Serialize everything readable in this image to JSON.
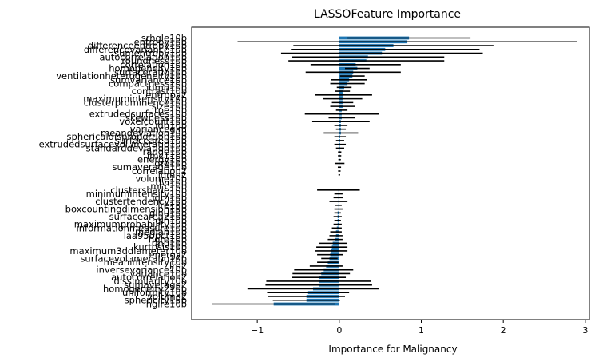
{
  "chart_data": {
    "type": "bar",
    "orientation": "horizontal",
    "title": "LASSOFeature Importance",
    "xlabel": "Importance for Malignancy",
    "ylabel": "",
    "xlim": [
      -1.8,
      3.05
    ],
    "xticks": [
      -1,
      0,
      1,
      2,
      3
    ],
    "xtick_labels": [
      "−1",
      "0",
      "1",
      "2",
      "3"
    ],
    "grid": false,
    "legend": "none",
    "bar_color": "#1f77b4",
    "error_color": "#000000",
    "features": [
      {
        "name": "srhgle10b",
        "value": 0.85,
        "err": 0.75
      },
      {
        "name": "entropy10b",
        "value": 0.83,
        "err": 2.07
      },
      {
        "name": "differenceentropy10b",
        "value": 0.66,
        "err": 1.22
      },
      {
        "name": "differencevariance10b",
        "value": 0.56,
        "err": 1.15
      },
      {
        "name": "sumentropy10b",
        "value": 0.52,
        "err": 1.23
      },
      {
        "name": "autocorrelation10b",
        "value": 0.35,
        "err": 0.93
      },
      {
        "name": "roundness10b",
        "value": 0.33,
        "err": 0.95
      },
      {
        "name": "correlation10b",
        "value": 0.2,
        "err": 0.55
      },
      {
        "name": "homogeneity10b",
        "value": 0.22,
        "err": 0.15
      },
      {
        "name": "surfaceratio10b",
        "value": 0.17,
        "err": 0.58
      },
      {
        "name": "ventilationheterogeneity10b",
        "value": 0.16,
        "err": 0.15
      },
      {
        "name": "sumvariance10b",
        "value": 0.12,
        "err": 0.22
      },
      {
        "name": "compactness10b",
        "value": 0.1,
        "err": 0.21
      },
      {
        "name": "idmn10b",
        "value": 0.06,
        "err": 0.09
      },
      {
        "name": "contrast10b",
        "value": 0.04,
        "err": 0.09
      },
      {
        "name": "entropy2",
        "value": 0.05,
        "err": 0.35
      },
      {
        "name": "maximumintensity10b",
        "value": 0.04,
        "err": 0.24
      },
      {
        "name": "clusterprominence10b",
        "value": 0.04,
        "err": 0.13
      },
      {
        "name": "size10b",
        "value": 0.04,
        "err": 0.15
      },
      {
        "name": "rpe10b",
        "value": 0.03,
        "err": 0.07
      },
      {
        "name": "extrudedsurfaces10b",
        "value": 0.03,
        "err": 0.45
      },
      {
        "name": "skewness10b",
        "value": 0.03,
        "err": 0.16
      },
      {
        "name": "voxelcount10b",
        "value": 0.02,
        "err": 0.35
      },
      {
        "name": "idn10b",
        "value": 0.02,
        "err": 0.08
      },
      {
        "name": "varianceglm",
        "value": 0.02,
        "err": 0.06
      },
      {
        "name": "meandeviation10b",
        "value": 0.02,
        "err": 0.21
      },
      {
        "name": "sphericaldisproportion10b",
        "value": 0.01,
        "err": 0.07
      },
      {
        "name": "surfacearea10b",
        "value": 0.01,
        "err": 0.05
      },
      {
        "name": "extrudedsurfacevolumeratio10b",
        "value": 0.01,
        "err": 0.07
      },
      {
        "name": "standarddeviation10b",
        "value": 0.01,
        "err": 0.05
      },
      {
        "name": "range10b",
        "value": 0.005,
        "err": 0.02
      },
      {
        "name": "imc110b",
        "value": 0.004,
        "err": 0.02
      },
      {
        "name": "energy10b",
        "value": 0.004,
        "err": 0.015
      },
      {
        "name": "lgre10b",
        "value": 0.003,
        "err": 0.06
      },
      {
        "name": "sumaverage10b",
        "value": 0.002,
        "err": 0.02
      },
      {
        "name": "correlation2",
        "value": 0.001,
        "err": 0.015
      },
      {
        "name": "idmn2",
        "value": 0.0,
        "err": 0.01
      },
      {
        "name": "volume10b",
        "value": 0.0,
        "err": 0.0
      },
      {
        "name": "dvi10b",
        "value": 0.0,
        "err": 0.0
      },
      {
        "name": "mcc10b",
        "value": 0.0,
        "err": 0.0
      },
      {
        "name": "clustershade10b",
        "value": -0.01,
        "err": 0.26
      },
      {
        "name": "minimumintensity10b",
        "value": -0.01,
        "err": 0.05
      },
      {
        "name": "idm10b",
        "value": -0.01,
        "err": 0.06
      },
      {
        "name": "clustertendency10b",
        "value": -0.01,
        "err": 0.11
      },
      {
        "name": "lre10b",
        "value": -0.01,
        "err": 0.04
      },
      {
        "name": "boxcountingdimension10b",
        "value": -0.01,
        "err": 0.05
      },
      {
        "name": "glnu10b",
        "value": -0.02,
        "err": 0.04
      },
      {
        "name": "surfacearea210b",
        "value": -0.02,
        "err": 0.05
      },
      {
        "name": "gln10b",
        "value": -0.02,
        "err": 0.04
      },
      {
        "name": "maximumprobability10b",
        "value": -0.02,
        "err": 0.05
      },
      {
        "name": "informationmeasure10b",
        "value": -0.03,
        "err": 0.06
      },
      {
        "name": "median10b",
        "value": -0.04,
        "err": 0.07
      },
      {
        "name": "laa950pct10b",
        "value": -0.04,
        "err": 0.08
      },
      {
        "name": "hgre10b",
        "value": -0.05,
        "err": 0.09
      },
      {
        "name": "rlnu10b",
        "value": -0.08,
        "err": 0.17
      },
      {
        "name": "kurtosis10b",
        "value": -0.09,
        "err": 0.19
      },
      {
        "name": "maximum3ddiameter10b",
        "value": -0.1,
        "err": 0.2
      },
      {
        "name": "energy2",
        "value": -0.11,
        "err": 0.16
      },
      {
        "name": "surfacevolumeratio10b",
        "value": -0.12,
        "err": 0.1
      },
      {
        "name": "meanintensity10b",
        "value": -0.14,
        "err": 0.13
      },
      {
        "name": "lre2",
        "value": -0.16,
        "err": 0.2
      },
      {
        "name": "inversevariance10b",
        "value": -0.19,
        "err": 0.36
      },
      {
        "name": "variance10b",
        "value": -0.22,
        "err": 0.35
      },
      {
        "name": "autocorrelation2",
        "value": -0.25,
        "err": 0.33
      },
      {
        "name": "dissimilarity10b",
        "value": -0.25,
        "err": 0.64
      },
      {
        "name": "sumaverage2",
        "value": -0.25,
        "err": 0.65
      },
      {
        "name": "homogeneity210b",
        "value": -0.32,
        "err": 0.8
      },
      {
        "name": "uniformity10b",
        "value": -0.38,
        "err": 0.5
      },
      {
        "name": "volume2",
        "value": -0.4,
        "err": 0.47
      },
      {
        "name": "sphericity10b",
        "value": -0.4,
        "err": 0.41
      },
      {
        "name": "hglre10b",
        "value": -0.8,
        "err": 0.75
      }
    ]
  }
}
